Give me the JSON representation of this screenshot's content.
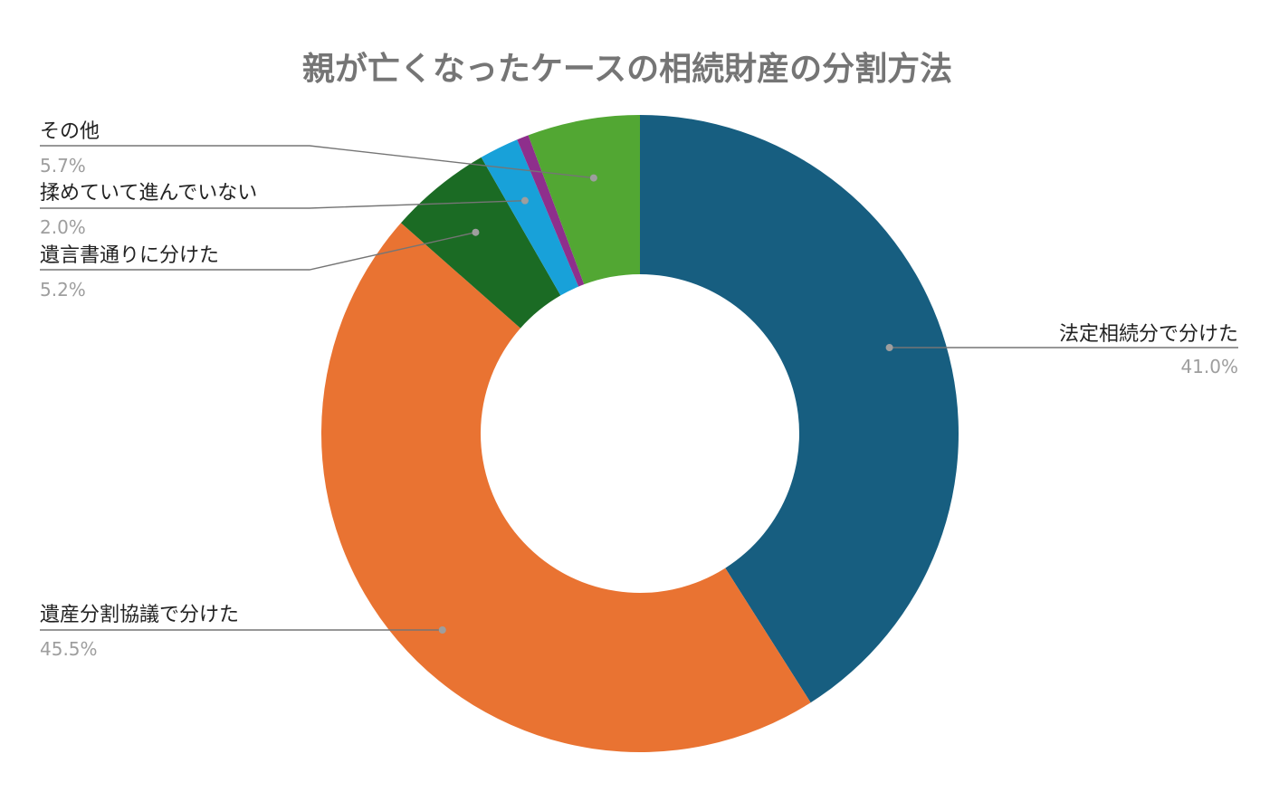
{
  "chart_data": {
    "type": "pie",
    "donut": true,
    "title": "親が亡くなったケースの相続財産の分割方法",
    "slices": [
      {
        "name": "法定相続分で分けた",
        "value": 41.0,
        "value_label": "41.0%",
        "color": "#175e80"
      },
      {
        "name": "遺産分割協議で分けた",
        "value": 45.5,
        "value_label": "45.5%",
        "color": "#e97332"
      },
      {
        "name": "遺言書通りに分けた",
        "value": 5.2,
        "value_label": "5.2%",
        "color": "#1b6b24"
      },
      {
        "name": "揉めていて進んでいない",
        "value": 2.0,
        "value_label": "2.0%",
        "color": "#18a1d9"
      },
      {
        "name": "",
        "value": 0.6,
        "value_label": "",
        "color": "#8e2f8c"
      },
      {
        "name": "その他",
        "value": 5.7,
        "value_label": "5.7%",
        "color": "#52a733"
      }
    ],
    "legend": "none",
    "labels": "outside-with-leader-lines"
  }
}
